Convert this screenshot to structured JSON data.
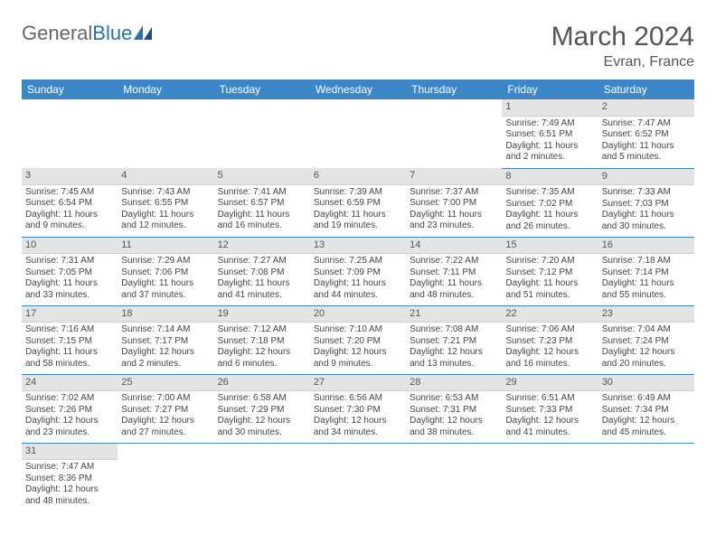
{
  "logo": {
    "part1": "General",
    "part2": "Blue"
  },
  "title": "March 2024",
  "location": "Evran, France",
  "colors": {
    "header_bg": "#3b87c8",
    "header_text": "#ffffff",
    "daynum_bg": "#e4e4e4",
    "row_divider": "#3b87c8",
    "text": "#444444",
    "logo_gray": "#666666",
    "logo_blue": "#2f6fa8"
  },
  "weekdays": [
    "Sunday",
    "Monday",
    "Tuesday",
    "Wednesday",
    "Thursday",
    "Friday",
    "Saturday"
  ],
  "weeks": [
    [
      null,
      null,
      null,
      null,
      null,
      {
        "n": "1",
        "sr": "Sunrise: 7:49 AM",
        "ss": "Sunset: 6:51 PM",
        "dl1": "Daylight: 11 hours",
        "dl2": "and 2 minutes."
      },
      {
        "n": "2",
        "sr": "Sunrise: 7:47 AM",
        "ss": "Sunset: 6:52 PM",
        "dl1": "Daylight: 11 hours",
        "dl2": "and 5 minutes."
      }
    ],
    [
      {
        "n": "3",
        "sr": "Sunrise: 7:45 AM",
        "ss": "Sunset: 6:54 PM",
        "dl1": "Daylight: 11 hours",
        "dl2": "and 9 minutes."
      },
      {
        "n": "4",
        "sr": "Sunrise: 7:43 AM",
        "ss": "Sunset: 6:55 PM",
        "dl1": "Daylight: 11 hours",
        "dl2": "and 12 minutes."
      },
      {
        "n": "5",
        "sr": "Sunrise: 7:41 AM",
        "ss": "Sunset: 6:57 PM",
        "dl1": "Daylight: 11 hours",
        "dl2": "and 16 minutes."
      },
      {
        "n": "6",
        "sr": "Sunrise: 7:39 AM",
        "ss": "Sunset: 6:59 PM",
        "dl1": "Daylight: 11 hours",
        "dl2": "and 19 minutes."
      },
      {
        "n": "7",
        "sr": "Sunrise: 7:37 AM",
        "ss": "Sunset: 7:00 PM",
        "dl1": "Daylight: 11 hours",
        "dl2": "and 23 minutes."
      },
      {
        "n": "8",
        "sr": "Sunrise: 7:35 AM",
        "ss": "Sunset: 7:02 PM",
        "dl1": "Daylight: 11 hours",
        "dl2": "and 26 minutes."
      },
      {
        "n": "9",
        "sr": "Sunrise: 7:33 AM",
        "ss": "Sunset: 7:03 PM",
        "dl1": "Daylight: 11 hours",
        "dl2": "and 30 minutes."
      }
    ],
    [
      {
        "n": "10",
        "sr": "Sunrise: 7:31 AM",
        "ss": "Sunset: 7:05 PM",
        "dl1": "Daylight: 11 hours",
        "dl2": "and 33 minutes."
      },
      {
        "n": "11",
        "sr": "Sunrise: 7:29 AM",
        "ss": "Sunset: 7:06 PM",
        "dl1": "Daylight: 11 hours",
        "dl2": "and 37 minutes."
      },
      {
        "n": "12",
        "sr": "Sunrise: 7:27 AM",
        "ss": "Sunset: 7:08 PM",
        "dl1": "Daylight: 11 hours",
        "dl2": "and 41 minutes."
      },
      {
        "n": "13",
        "sr": "Sunrise: 7:25 AM",
        "ss": "Sunset: 7:09 PM",
        "dl1": "Daylight: 11 hours",
        "dl2": "and 44 minutes."
      },
      {
        "n": "14",
        "sr": "Sunrise: 7:22 AM",
        "ss": "Sunset: 7:11 PM",
        "dl1": "Daylight: 11 hours",
        "dl2": "and 48 minutes."
      },
      {
        "n": "15",
        "sr": "Sunrise: 7:20 AM",
        "ss": "Sunset: 7:12 PM",
        "dl1": "Daylight: 11 hours",
        "dl2": "and 51 minutes."
      },
      {
        "n": "16",
        "sr": "Sunrise: 7:18 AM",
        "ss": "Sunset: 7:14 PM",
        "dl1": "Daylight: 11 hours",
        "dl2": "and 55 minutes."
      }
    ],
    [
      {
        "n": "17",
        "sr": "Sunrise: 7:16 AM",
        "ss": "Sunset: 7:15 PM",
        "dl1": "Daylight: 11 hours",
        "dl2": "and 58 minutes."
      },
      {
        "n": "18",
        "sr": "Sunrise: 7:14 AM",
        "ss": "Sunset: 7:17 PM",
        "dl1": "Daylight: 12 hours",
        "dl2": "and 2 minutes."
      },
      {
        "n": "19",
        "sr": "Sunrise: 7:12 AM",
        "ss": "Sunset: 7:18 PM",
        "dl1": "Daylight: 12 hours",
        "dl2": "and 6 minutes."
      },
      {
        "n": "20",
        "sr": "Sunrise: 7:10 AM",
        "ss": "Sunset: 7:20 PM",
        "dl1": "Daylight: 12 hours",
        "dl2": "and 9 minutes."
      },
      {
        "n": "21",
        "sr": "Sunrise: 7:08 AM",
        "ss": "Sunset: 7:21 PM",
        "dl1": "Daylight: 12 hours",
        "dl2": "and 13 minutes."
      },
      {
        "n": "22",
        "sr": "Sunrise: 7:06 AM",
        "ss": "Sunset: 7:23 PM",
        "dl1": "Daylight: 12 hours",
        "dl2": "and 16 minutes."
      },
      {
        "n": "23",
        "sr": "Sunrise: 7:04 AM",
        "ss": "Sunset: 7:24 PM",
        "dl1": "Daylight: 12 hours",
        "dl2": "and 20 minutes."
      }
    ],
    [
      {
        "n": "24",
        "sr": "Sunrise: 7:02 AM",
        "ss": "Sunset: 7:26 PM",
        "dl1": "Daylight: 12 hours",
        "dl2": "and 23 minutes."
      },
      {
        "n": "25",
        "sr": "Sunrise: 7:00 AM",
        "ss": "Sunset: 7:27 PM",
        "dl1": "Daylight: 12 hours",
        "dl2": "and 27 minutes."
      },
      {
        "n": "26",
        "sr": "Sunrise: 6:58 AM",
        "ss": "Sunset: 7:29 PM",
        "dl1": "Daylight: 12 hours",
        "dl2": "and 30 minutes."
      },
      {
        "n": "27",
        "sr": "Sunrise: 6:56 AM",
        "ss": "Sunset: 7:30 PM",
        "dl1": "Daylight: 12 hours",
        "dl2": "and 34 minutes."
      },
      {
        "n": "28",
        "sr": "Sunrise: 6:53 AM",
        "ss": "Sunset: 7:31 PM",
        "dl1": "Daylight: 12 hours",
        "dl2": "and 38 minutes."
      },
      {
        "n": "29",
        "sr": "Sunrise: 6:51 AM",
        "ss": "Sunset: 7:33 PM",
        "dl1": "Daylight: 12 hours",
        "dl2": "and 41 minutes."
      },
      {
        "n": "30",
        "sr": "Sunrise: 6:49 AM",
        "ss": "Sunset: 7:34 PM",
        "dl1": "Daylight: 12 hours",
        "dl2": "and 45 minutes."
      }
    ],
    [
      {
        "n": "31",
        "sr": "Sunrise: 7:47 AM",
        "ss": "Sunset: 8:36 PM",
        "dl1": "Daylight: 12 hours",
        "dl2": "and 48 minutes."
      },
      null,
      null,
      null,
      null,
      null,
      null
    ]
  ]
}
